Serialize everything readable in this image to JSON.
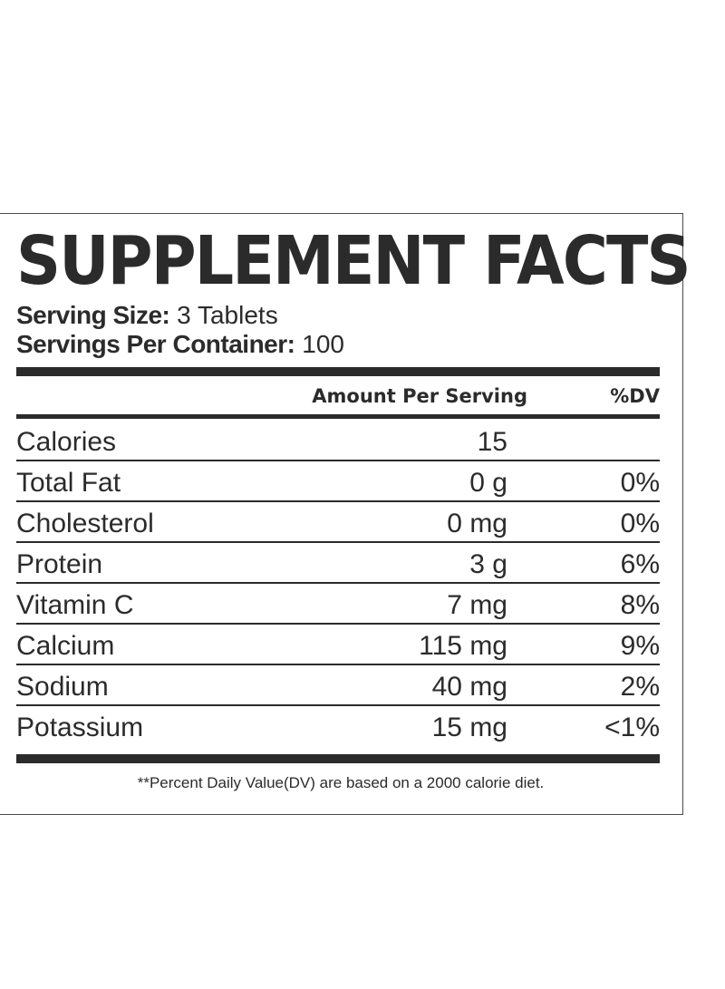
{
  "label": {
    "title": "SUPPLEMENT FACTS",
    "serving_size_label": "Serving Size:",
    "serving_size_value": "3 Tablets",
    "servings_per_container_label": "Servings Per Container:",
    "servings_per_container_value": "100",
    "header_amount": "Amount Per Serving",
    "header_dv": "%DV",
    "rows": [
      {
        "nutrient": "Calories",
        "amount": "15",
        "dv": ""
      },
      {
        "nutrient": "Total Fat",
        "amount": "0 g",
        "dv": "0%"
      },
      {
        "nutrient": "Cholesterol",
        "amount": "0 mg",
        "dv": "0%"
      },
      {
        "nutrient": "Protein",
        "amount": "3 g",
        "dv": "6%"
      },
      {
        "nutrient": "Vitamin C",
        "amount": "7 mg",
        "dv": "8%"
      },
      {
        "nutrient": "Calcium",
        "amount": "115 mg",
        "dv": "9%"
      },
      {
        "nutrient": "Sodium",
        "amount": "40 mg",
        "dv": "2%"
      },
      {
        "nutrient": "Potassium",
        "amount": "15 mg",
        "dv": "<1%"
      }
    ],
    "footnote": "**Percent Daily Value(DV) are based on a 2000 calorie diet."
  },
  "colors": {
    "ink": "#2b2b2b",
    "background": "#ffffff",
    "border": "#4a4a4a"
  }
}
